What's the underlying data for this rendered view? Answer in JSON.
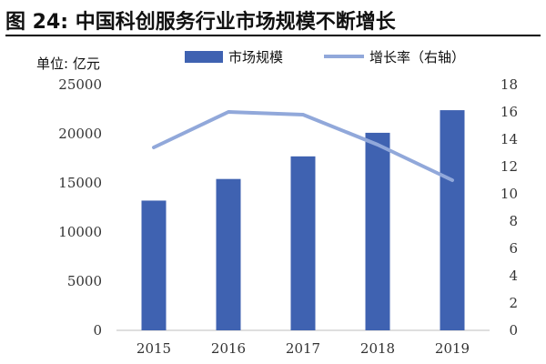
{
  "figure": {
    "title": "图 24:  中国科创服务行业市场规模不断增长",
    "unit_label": "单位:  亿元"
  },
  "chart_data": {
    "type": "bar",
    "categories": [
      "2015",
      "2016",
      "2017",
      "2018",
      "2019"
    ],
    "series": [
      {
        "name": "市场规模",
        "type": "bar",
        "axis": "left",
        "color": "#3f62b1",
        "values": [
          13200,
          15400,
          17700,
          20100,
          22400
        ]
      },
      {
        "name": "增长率（右轴）",
        "type": "line",
        "axis": "right",
        "color": "#91a8da",
        "values": [
          13.4,
          16.0,
          15.8,
          13.6,
          11.0
        ]
      }
    ],
    "y_left": {
      "ylim": [
        0,
        25000
      ],
      "ticks": [
        "0",
        "5000",
        "10000",
        "15000",
        "20000",
        "25000"
      ]
    },
    "y_right": {
      "ylim": [
        0,
        18
      ],
      "ticks": [
        "0",
        "2",
        "4",
        "6",
        "8",
        "10",
        "12",
        "14",
        "16",
        "18"
      ]
    },
    "legend_position": "top",
    "grid": false
  }
}
